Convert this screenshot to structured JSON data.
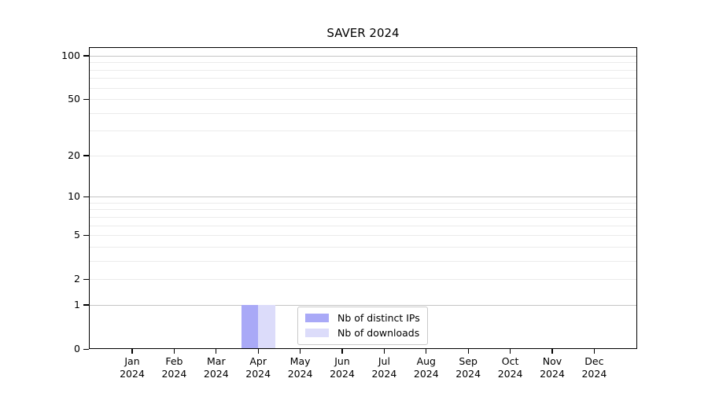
{
  "chart_data": {
    "type": "bar",
    "title": "SAVER 2024",
    "xlabel": "",
    "ylabel": "",
    "yscale": "log10(1+y)",
    "ylim": [
      0,
      114.7
    ],
    "grid": "horizontal",
    "legend_position": "lower center",
    "x_months": [
      "Jan",
      "Feb",
      "Mar",
      "Apr",
      "May",
      "Jun",
      "Jul",
      "Aug",
      "Sep",
      "Oct",
      "Nov",
      "Dec"
    ],
    "x_year": "2024",
    "yticks": [
      100,
      50,
      20,
      10,
      5,
      2,
      1,
      0
    ],
    "grid_major_values": [
      100,
      10,
      1
    ],
    "grid_minor_values": [
      90,
      80,
      70,
      60,
      50,
      40,
      30,
      20,
      9,
      8,
      7,
      6,
      5,
      4,
      3,
      2
    ],
    "series": [
      {
        "name": "Nb of distinct IPs",
        "color": "#a9a9f7",
        "values": [
          0,
          0,
          0,
          1,
          0,
          0,
          0,
          0,
          0,
          0,
          0,
          0
        ]
      },
      {
        "name": "Nb of downloads",
        "color": "#dcdcfa",
        "values": [
          0,
          0,
          0,
          1,
          0,
          0,
          0,
          0,
          0,
          0,
          0,
          0
        ]
      }
    ]
  }
}
